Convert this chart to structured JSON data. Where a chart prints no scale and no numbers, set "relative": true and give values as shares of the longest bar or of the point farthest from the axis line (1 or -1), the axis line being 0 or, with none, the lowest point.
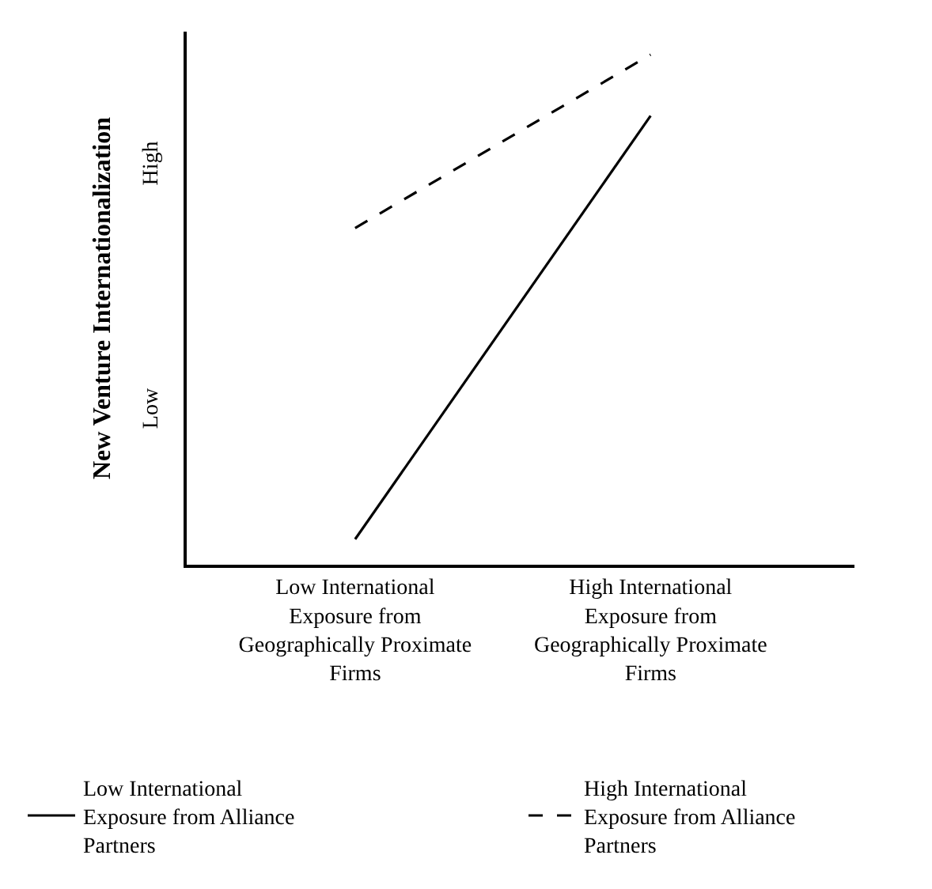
{
  "chart_data": {
    "type": "line",
    "relative": true,
    "ylabel": "New Venture Internationalization",
    "categories": [
      "Low International Exposure from Geographically Proximate Firms",
      "High International Exposure from Geographically Proximate Firms"
    ],
    "series": [
      {
        "name": "Low International Exposure from Alliance Partners",
        "color": "#000000",
        "line_style": "solid",
        "values": [
          0.05,
          0.88
        ]
      },
      {
        "name": "High International Exposure from Alliance Partners",
        "color": "#000000",
        "line_style": "dashed",
        "values": [
          0.66,
          1
        ]
      }
    ],
    "annotations": [
      "Low",
      "High"
    ],
    "marker": "none",
    "legend": "bottom"
  }
}
